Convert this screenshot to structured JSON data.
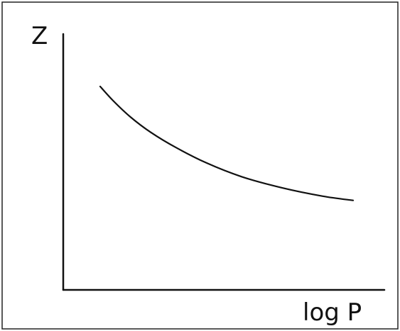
{
  "chart_data": {
    "type": "line",
    "title": "",
    "xlabel": "log P",
    "ylabel": "Z",
    "grid": false,
    "legend": "none",
    "series": [
      {
        "values": [
          {
            "x": 0.0,
            "y": 1.0
          },
          {
            "x": 0.05,
            "y": 0.9
          },
          {
            "x": 0.12,
            "y": 0.78
          },
          {
            "x": 0.2,
            "y": 0.67
          },
          {
            "x": 0.3,
            "y": 0.56
          },
          {
            "x": 0.42,
            "y": 0.45
          },
          {
            "x": 0.56,
            "y": 0.35
          },
          {
            "x": 0.72,
            "y": 0.27
          },
          {
            "x": 0.88,
            "y": 0.21
          },
          {
            "x": 1.0,
            "y": 0.18
          }
        ]
      }
    ],
    "colors": {
      "line": "#111111",
      "axis": "#111111",
      "frame": "#222222"
    }
  }
}
